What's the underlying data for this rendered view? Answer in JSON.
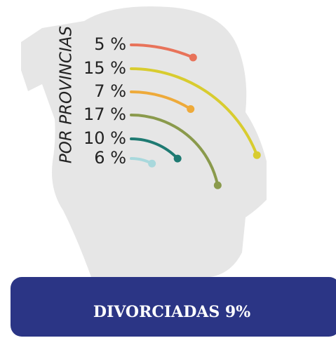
{
  "chart_data": {
    "type": "radial-arc",
    "title": "POR PROVINCIAS",
    "values": [
      5,
      15,
      7,
      17,
      10,
      6
    ],
    "value_labels": [
      "5 %",
      "15 %",
      "7 %",
      "17 %",
      "10 %",
      "6 %"
    ],
    "colors": [
      "#e8735a",
      "#d8cc2f",
      "#eeaa3a",
      "#8a9a4c",
      "#1e7a72",
      "#a8d8dc"
    ],
    "banner": "DIVORCIADAS 9%"
  }
}
